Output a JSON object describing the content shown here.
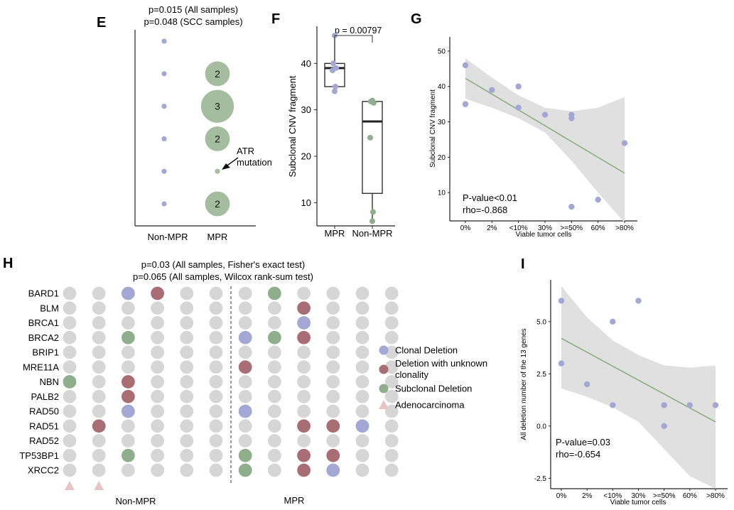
{
  "colors": {
    "clonal": "#a2a8d3",
    "unknown": "#a86e74",
    "subclonal": "#8fae8c",
    "none": "#d6d6d6",
    "bubble": "#a4bd9f",
    "adeno": "#e9c4c4",
    "band": "#e0e0e0",
    "line": "#86ad7b",
    "box": "#222222"
  },
  "panels": {
    "E": "E",
    "F": "F",
    "G": "G",
    "H": "H",
    "I": "I"
  },
  "annotations": {
    "atr_line1": "ATR",
    "atr_line2": "mutation"
  },
  "chart_data": [
    {
      "panel": "E",
      "type": "scatter",
      "title_lines": [
        "p=0.015 (All samples)",
        "p=0.048 (SCC samples)"
      ],
      "categories": [
        "Non-MPR",
        "MPR"
      ],
      "non_mpr_levels": [
        1,
        2,
        3,
        4,
        5,
        6
      ],
      "mpr_bubbles": [
        {
          "level": 2,
          "count": 2
        },
        {
          "level": 3,
          "count": 3
        },
        {
          "level": 4,
          "count": 2
        },
        {
          "level": 5,
          "count": 1
        },
        {
          "level": 6,
          "count": 2
        }
      ],
      "bubble_labels": [
        "2",
        "3",
        "2",
        "",
        "2"
      ]
    },
    {
      "panel": "F",
      "type": "box",
      "ylabel": "Subclonal CNV fragment",
      "categories": [
        "MPR",
        "Non-MPR"
      ],
      "ylim": [
        5,
        48
      ],
      "yticks": [
        10,
        20,
        30,
        40
      ],
      "pvalue": "p = 0.00797",
      "boxes": [
        {
          "name": "MPR",
          "q1": 35,
          "median": 39,
          "q3": 40,
          "whisker_low": 34,
          "whisker_high": 46,
          "points": [
            46,
            40,
            39,
            38.5,
            35,
            34
          ]
        },
        {
          "name": "Non-MPR",
          "q1": 12,
          "median": 27.5,
          "q3": 31.8,
          "whisker_low": 6,
          "whisker_high": 32,
          "points": [
            32,
            31.8,
            31.5,
            24,
            8,
            6
          ]
        }
      ]
    },
    {
      "panel": "G",
      "type": "scatter",
      "xlabel": "Viable tumor cells",
      "ylabel": "Subclonal CNV fragment",
      "xtick_labels": [
        "0%",
        "2%",
        "<10%",
        "30%",
        ">=50%",
        "60%",
        ">80%"
      ],
      "yticks": [
        10,
        20,
        30,
        40,
        50
      ],
      "ylim": [
        2,
        54
      ],
      "x": [
        0,
        0,
        1,
        2,
        2,
        3,
        4,
        4,
        4,
        5,
        6
      ],
      "y": [
        46,
        35,
        39,
        40,
        34,
        32,
        32,
        31,
        6,
        8,
        24
      ],
      "fit": {
        "y_start": 42.3,
        "y_end": 15.5
      },
      "band_upper": [
        48,
        42.5,
        37.5,
        34,
        33,
        34,
        37
      ],
      "band_lower": [
        36.5,
        34,
        31,
        27,
        19,
        10,
        1.5
      ],
      "stats": [
        "P-value<0.01",
        "rho=-0.868"
      ]
    },
    {
      "panel": "H",
      "type": "heatmap",
      "title_lines": [
        "p=0.03 (All samples, Fisher's exact test)",
        "p=0.065 (All samples, Wilcox rank-sum test)"
      ],
      "genes": [
        "BARD1",
        "BLM",
        "BRCA1",
        "BRCA2",
        "BRIP1",
        "MRE11A",
        "NBN",
        "PALB2",
        "RAD50",
        "RAD51",
        "RAD52",
        "TP53BP1",
        "XRCC2"
      ],
      "groups": [
        "Non-MPR",
        "MPR"
      ],
      "n_samples": 12,
      "divider_after": 6,
      "status_codes": {
        "0": "none",
        "1": "clonal",
        "2": "unknown",
        "3": "subclonal"
      },
      "matrix": [
        [
          0,
          0,
          1,
          2,
          0,
          0,
          0,
          3,
          0,
          0,
          0,
          0
        ],
        [
          0,
          0,
          0,
          0,
          0,
          0,
          0,
          0,
          2,
          0,
          0,
          0
        ],
        [
          0,
          0,
          0,
          0,
          0,
          0,
          0,
          0,
          1,
          0,
          0,
          0
        ],
        [
          0,
          0,
          3,
          0,
          0,
          0,
          1,
          3,
          2,
          0,
          0,
          0
        ],
        [
          0,
          0,
          0,
          0,
          0,
          0,
          0,
          0,
          0,
          0,
          0,
          0
        ],
        [
          0,
          0,
          0,
          0,
          0,
          0,
          2,
          0,
          0,
          0,
          0,
          0
        ],
        [
          3,
          0,
          2,
          0,
          0,
          0,
          0,
          0,
          0,
          0,
          0,
          0
        ],
        [
          0,
          0,
          2,
          0,
          0,
          0,
          0,
          0,
          0,
          0,
          0,
          0
        ],
        [
          0,
          0,
          1,
          0,
          0,
          0,
          1,
          0,
          0,
          0,
          0,
          0
        ],
        [
          0,
          2,
          0,
          0,
          0,
          0,
          0,
          0,
          2,
          2,
          1,
          0
        ],
        [
          0,
          0,
          0,
          0,
          0,
          0,
          0,
          0,
          0,
          0,
          0,
          0
        ],
        [
          0,
          0,
          3,
          0,
          0,
          0,
          3,
          0,
          2,
          2,
          0,
          0
        ],
        [
          0,
          0,
          0,
          0,
          0,
          0,
          3,
          0,
          2,
          1,
          0,
          0
        ]
      ],
      "adenocarcinoma_samples": [
        0,
        1
      ],
      "legend": [
        {
          "key": "clonal",
          "label_lines": [
            "Clonal Deletion"
          ]
        },
        {
          "key": "unknown",
          "label_lines": [
            "Deletion with unknown",
            "clonality"
          ]
        },
        {
          "key": "subclonal",
          "label_lines": [
            "Subclonal Deletion"
          ]
        },
        {
          "key": "adeno",
          "label_lines": [
            "Adenocarcinoma"
          ]
        }
      ]
    },
    {
      "panel": "I",
      "type": "scatter",
      "xlabel": "Viable tumor cells",
      "ylabel": "All deletion number of the 13 genes",
      "xtick_labels": [
        "0%",
        "2%",
        "<10%",
        "30%",
        ">=50%",
        "60%",
        ">80%"
      ],
      "yticks": [
        -2.5,
        0.0,
        2.5,
        5.0
      ],
      "ytick_labels": [
        "-2.5",
        "0.0",
        "2.5",
        "5.0"
      ],
      "ylim": [
        -3.0,
        7.0
      ],
      "x": [
        0,
        0,
        1,
        2,
        2,
        3,
        4,
        4,
        5,
        6
      ],
      "y": [
        6,
        3,
        2,
        5,
        1,
        6,
        1,
        0,
        1,
        1
      ],
      "fit": {
        "y_start": 4.2,
        "y_end": 0.2
      },
      "band_upper": [
        6.7,
        5.2,
        4.1,
        3.4,
        2.9,
        2.8,
        2.9
      ],
      "band_lower": [
        1.8,
        1.4,
        0.9,
        0.2,
        -1.1,
        -2.4,
        -3.0
      ],
      "stats": [
        "P-value=0.03",
        "rho=-0.654"
      ]
    }
  ]
}
